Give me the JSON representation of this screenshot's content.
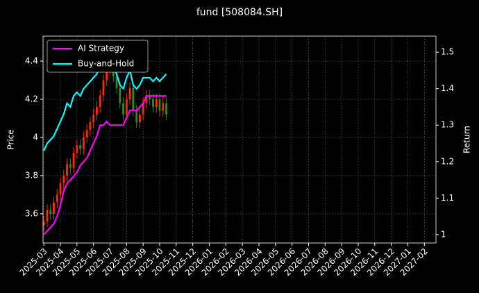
{
  "chart_data": {
    "type": "candlestick_returns",
    "title": "fund [508084.SH]",
    "ylabel": "Price",
    "y2label": "Return",
    "x": [
      0,
      0.2,
      0.4,
      0.6,
      0.8,
      1,
      1.2,
      1.4,
      1.6,
      1.8,
      2,
      2.2,
      2.4,
      2.6,
      2.8,
      3,
      3.2,
      3.4,
      3.6,
      3.8,
      4,
      4.2,
      4.4,
      4.6,
      4.8,
      5,
      5.2,
      5.4,
      5.6,
      5.8,
      6,
      6.2,
      6.4,
      6.6,
      6.8,
      7,
      7.2,
      7.4
    ],
    "open": [
      3.54,
      3.56,
      3.62,
      3.6,
      3.66,
      3.7,
      3.76,
      3.8,
      3.86,
      3.84,
      3.92,
      3.96,
      3.94,
      4.0,
      4.04,
      4.08,
      4.12,
      4.16,
      4.22,
      4.3,
      4.36,
      4.4,
      4.32,
      4.26,
      4.18,
      4.12,
      4.2,
      4.26,
      4.14,
      4.08,
      4.12,
      4.18,
      4.22,
      4.2,
      4.16,
      4.2,
      4.14,
      4.18
    ],
    "close": [
      3.56,
      3.62,
      3.6,
      3.66,
      3.7,
      3.76,
      3.8,
      3.86,
      3.84,
      3.92,
      3.96,
      3.94,
      4.0,
      4.04,
      4.08,
      4.12,
      4.16,
      4.22,
      4.3,
      4.36,
      4.4,
      4.32,
      4.26,
      4.18,
      4.12,
      4.2,
      4.26,
      4.14,
      4.08,
      4.12,
      4.18,
      4.22,
      4.2,
      4.16,
      4.2,
      4.14,
      4.18,
      4.12
    ],
    "high": [
      3.59,
      3.65,
      3.65,
      3.69,
      3.73,
      3.79,
      3.83,
      3.89,
      3.89,
      3.95,
      3.99,
      3.99,
      4.03,
      4.07,
      4.11,
      4.15,
      4.19,
      4.25,
      4.33,
      4.39,
      4.43,
      4.43,
      4.35,
      4.29,
      4.21,
      4.23,
      4.29,
      4.29,
      4.17,
      4.15,
      4.21,
      4.25,
      4.25,
      4.23,
      4.23,
      4.23,
      4.21,
      4.21
    ],
    "low": [
      3.51,
      3.53,
      3.57,
      3.57,
      3.63,
      3.67,
      3.73,
      3.77,
      3.81,
      3.81,
      3.89,
      3.91,
      3.91,
      3.97,
      4.01,
      4.05,
      4.09,
      4.13,
      4.19,
      4.27,
      4.33,
      4.29,
      4.23,
      4.15,
      4.09,
      4.09,
      4.17,
      4.11,
      4.05,
      4.05,
      4.09,
      4.15,
      4.17,
      4.13,
      4.13,
      4.11,
      4.11,
      4.09
    ],
    "up_color": "#ff2a00",
    "down_color": "#2e8b20",
    "series": [
      {
        "name": "AI Strategy",
        "color": "#ff00ff",
        "axis": "y2",
        "values": [
          1.0,
          1.01,
          1.02,
          1.03,
          1.05,
          1.08,
          1.12,
          1.14,
          1.15,
          1.16,
          1.17,
          1.19,
          1.2,
          1.21,
          1.23,
          1.25,
          1.27,
          1.3,
          1.3,
          1.31,
          1.3,
          1.3,
          1.3,
          1.3,
          1.3,
          1.32,
          1.34,
          1.34,
          1.34,
          1.35,
          1.36,
          1.38,
          1.38,
          1.38,
          1.38,
          1.38,
          1.38,
          1.38
        ]
      },
      {
        "name": "Buy-and-Hold",
        "color": "#00ffff",
        "axis": "y2",
        "values": [
          1.23,
          1.25,
          1.26,
          1.27,
          1.29,
          1.31,
          1.33,
          1.36,
          1.35,
          1.38,
          1.39,
          1.38,
          1.4,
          1.41,
          1.42,
          1.43,
          1.44,
          1.47,
          1.5,
          1.49,
          1.5,
          1.46,
          1.44,
          1.41,
          1.4,
          1.43,
          1.45,
          1.41,
          1.4,
          1.41,
          1.43,
          1.43,
          1.43,
          1.42,
          1.43,
          1.42,
          1.43,
          1.44
        ]
      }
    ],
    "xlim": [
      -0.05,
      23.7
    ],
    "xticks": [
      {
        "value": 0,
        "label": "2025-03"
      },
      {
        "value": 1,
        "label": "2025-04"
      },
      {
        "value": 2,
        "label": "2025-05"
      },
      {
        "value": 3,
        "label": "2025-06"
      },
      {
        "value": 4,
        "label": "2025-07"
      },
      {
        "value": 5,
        "label": "2025-08"
      },
      {
        "value": 6,
        "label": "2025-09"
      },
      {
        "value": 7,
        "label": "2025-10"
      },
      {
        "value": 8,
        "label": "2025-11"
      },
      {
        "value": 9,
        "label": "2025-12"
      },
      {
        "value": 10,
        "label": "2026-01"
      },
      {
        "value": 11,
        "label": "2026-02"
      },
      {
        "value": 12,
        "label": "2026-03"
      },
      {
        "value": 13,
        "label": "2026-04"
      },
      {
        "value": 14,
        "label": "2026-05"
      },
      {
        "value": 15,
        "label": "2026-06"
      },
      {
        "value": 16,
        "label": "2026-07"
      },
      {
        "value": 17,
        "label": "2026-08"
      },
      {
        "value": 18,
        "label": "2026-09"
      },
      {
        "value": 19,
        "label": "2026-10"
      },
      {
        "value": 20,
        "label": "2026-11"
      },
      {
        "value": 21,
        "label": "2026-12"
      },
      {
        "value": 22,
        "label": "2027-01"
      },
      {
        "value": 23,
        "label": "2027-02"
      }
    ],
    "ylim": [
      3.447,
      4.531
    ],
    "yticks": [
      3.6,
      3.8,
      4.0,
      4.2,
      4.4
    ],
    "y2lim": [
      0.977,
      1.544
    ],
    "y2ticks": [
      1.0,
      1.1,
      1.2,
      1.3,
      1.4,
      1.5
    ],
    "grid": true,
    "legend": "upper left"
  }
}
